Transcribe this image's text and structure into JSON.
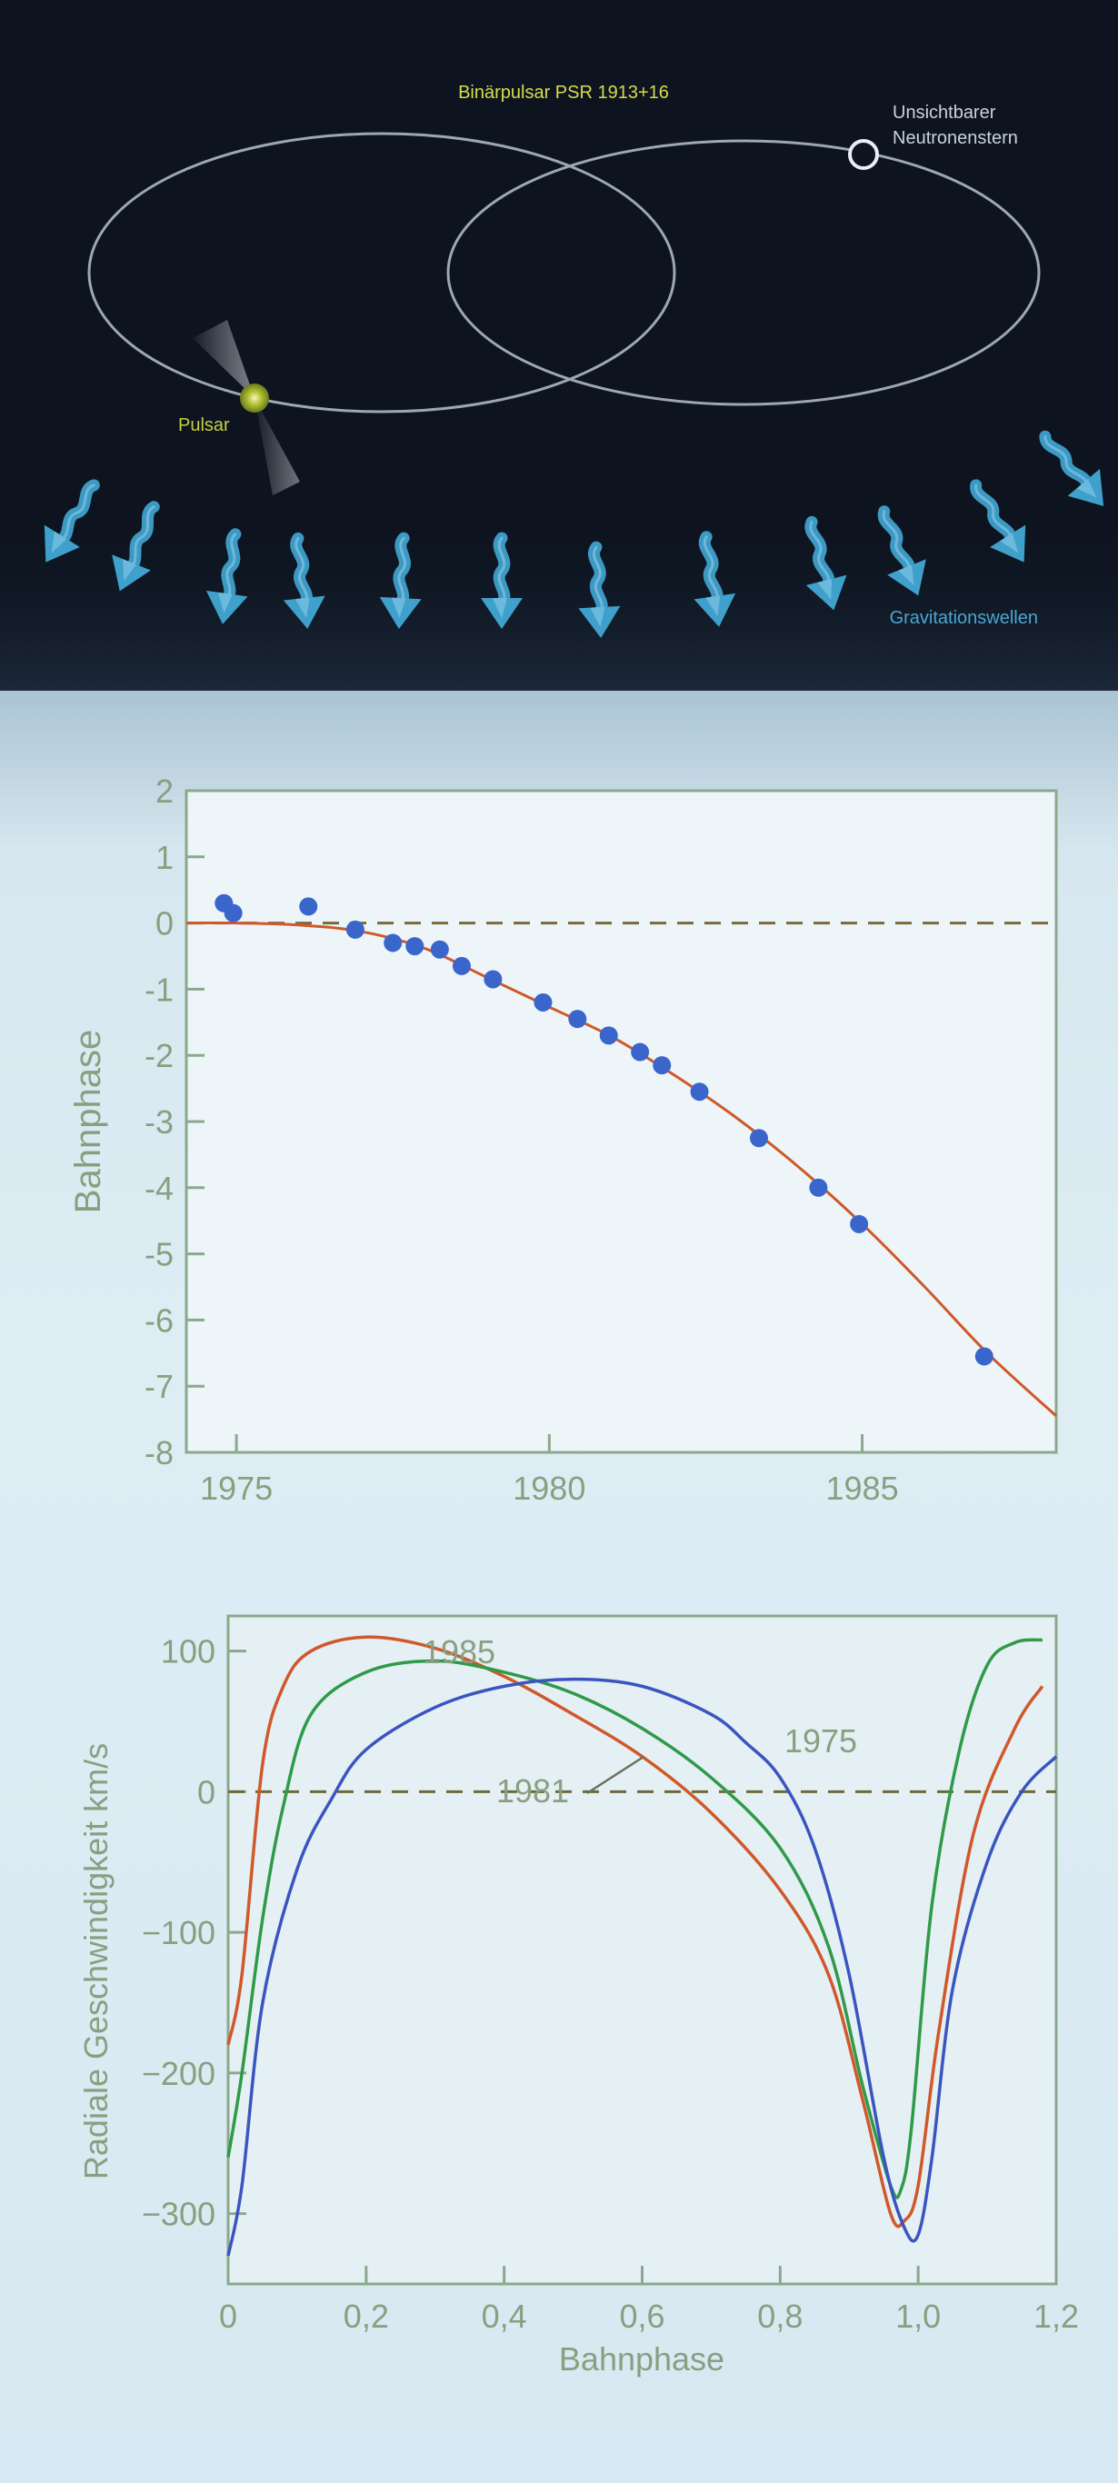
{
  "diagram": {
    "title": "Binärpulsar PSR 1913+16",
    "neutron_star_label_line1": "Unsichtbarer",
    "neutron_star_label_line2": "Neutronenstern",
    "pulsar_label": "Pulsar",
    "waves_label": "Gravitationswellen",
    "colors": {
      "background": "#0d1420",
      "title": "#d8dc4a",
      "pulsar": "#b6c435",
      "orbit": "#9ca8b6",
      "wave_arrow": "#3fa0cc",
      "label": "#c9d3dc"
    }
  },
  "chart_data": [
    {
      "type": "scatter",
      "title": "",
      "xlabel": "",
      "ylabel": "Bahnphase",
      "xlim": [
        1974.2,
        1988.1
      ],
      "ylim": [
        -8,
        2
      ],
      "x_ticks": [
        "1975",
        "1980",
        "1985"
      ],
      "y_ticks": [
        "2",
        "1",
        "0",
        "-1",
        "-2",
        "-3",
        "-4",
        "-5",
        "-6",
        "-7",
        "-8"
      ],
      "grid": false,
      "reference_line": {
        "y": 0,
        "style": "dashed",
        "color": "#7a6a3a"
      },
      "series": [
        {
          "kind": "points",
          "color": "#3a66cc",
          "points": [
            [
              1974.8,
              0.3
            ],
            [
              1974.95,
              0.15
            ],
            [
              1976.15,
              0.25
            ],
            [
              1976.9,
              -0.1
            ],
            [
              1977.5,
              -0.3
            ],
            [
              1977.85,
              -0.35
            ],
            [
              1978.25,
              -0.4
            ],
            [
              1978.6,
              -0.65
            ],
            [
              1979.1,
              -0.85
            ],
            [
              1979.9,
              -1.2
            ],
            [
              1980.45,
              -1.45
            ],
            [
              1980.95,
              -1.7
            ],
            [
              1981.45,
              -1.95
            ],
            [
              1981.8,
              -2.15
            ],
            [
              1982.4,
              -2.55
            ],
            [
              1983.35,
              -3.25
            ],
            [
              1984.3,
              -4.0
            ],
            [
              1984.95,
              -4.55
            ],
            [
              1986.95,
              -6.55
            ]
          ]
        },
        {
          "kind": "curve",
          "color": "#d0582a",
          "points": [
            [
              1974.2,
              0.0
            ],
            [
              1975.0,
              0.0
            ],
            [
              1976.0,
              -0.03
            ],
            [
              1977.0,
              -0.13
            ],
            [
              1978.0,
              -0.38
            ],
            [
              1979.0,
              -0.82
            ],
            [
              1980.0,
              -1.27
            ],
            [
              1981.0,
              -1.72
            ],
            [
              1982.0,
              -2.3
            ],
            [
              1983.0,
              -2.95
            ],
            [
              1984.0,
              -3.7
            ],
            [
              1985.0,
              -4.55
            ],
            [
              1986.0,
              -5.5
            ],
            [
              1987.0,
              -6.5
            ],
            [
              1988.1,
              -7.45
            ]
          ]
        }
      ]
    },
    {
      "type": "line",
      "title": "",
      "xlabel": "Bahnphase",
      "ylabel": "Radiale Geschwindigkeit km/s",
      "xlim": [
        0,
        1.2
      ],
      "ylim": [
        -350,
        125
      ],
      "x_ticks": [
        "0",
        "0,2",
        "0,4",
        "0,6",
        "0,8",
        "1,0",
        "1,2"
      ],
      "y_ticks": [
        "100",
        "0",
        "−100",
        "−200",
        "−300"
      ],
      "grid": false,
      "reference_line": {
        "y": 0,
        "style": "dashed",
        "color": "#6d6a3a"
      },
      "annotations": {
        "label_1985": "1985",
        "label_1981": "1981",
        "label_1975": "1975"
      },
      "series": [
        {
          "name": "1985",
          "color": "#d0582a",
          "points": [
            [
              0,
              -180
            ],
            [
              0.02,
              -130
            ],
            [
              0.05,
              20
            ],
            [
              0.08,
              75
            ],
            [
              0.12,
              100
            ],
            [
              0.2,
              110
            ],
            [
              0.3,
              102
            ],
            [
              0.4,
              82
            ],
            [
              0.5,
              55
            ],
            [
              0.6,
              25
            ],
            [
              0.7,
              -15
            ],
            [
              0.8,
              -70
            ],
            [
              0.87,
              -130
            ],
            [
              0.92,
              -220
            ],
            [
              0.96,
              -300
            ],
            [
              0.98,
              -305
            ],
            [
              1.0,
              -280
            ],
            [
              1.03,
              -170
            ],
            [
              1.08,
              -30
            ],
            [
              1.14,
              45
            ],
            [
              1.18,
              75
            ]
          ]
        },
        {
          "name": "1981",
          "color": "#2f9a48",
          "points": [
            [
              0,
              -260
            ],
            [
              0.02,
              -200
            ],
            [
              0.05,
              -90
            ],
            [
              0.08,
              -10
            ],
            [
              0.12,
              55
            ],
            [
              0.2,
              85
            ],
            [
              0.3,
              93
            ],
            [
              0.4,
              85
            ],
            [
              0.5,
              70
            ],
            [
              0.6,
              45
            ],
            [
              0.7,
              10
            ],
            [
              0.8,
              -40
            ],
            [
              0.87,
              -110
            ],
            [
              0.92,
              -210
            ],
            [
              0.96,
              -280
            ],
            [
              0.975,
              -283
            ],
            [
              0.99,
              -240
            ],
            [
              1.02,
              -80
            ],
            [
              1.06,
              30
            ],
            [
              1.1,
              90
            ],
            [
              1.14,
              106
            ],
            [
              1.18,
              108
            ]
          ]
        },
        {
          "name": "1975",
          "color": "#3a55c0",
          "points": [
            [
              0,
              -330
            ],
            [
              0.02,
              -280
            ],
            [
              0.05,
              -150
            ],
            [
              0.1,
              -55
            ],
            [
              0.15,
              -5
            ],
            [
              0.2,
              30
            ],
            [
              0.3,
              60
            ],
            [
              0.4,
              75
            ],
            [
              0.5,
              80
            ],
            [
              0.6,
              75
            ],
            [
              0.7,
              55
            ],
            [
              0.75,
              35
            ],
            [
              0.8,
              10
            ],
            [
              0.85,
              -40
            ],
            [
              0.9,
              -130
            ],
            [
              0.95,
              -260
            ],
            [
              0.98,
              -310
            ],
            [
              1.0,
              -315
            ],
            [
              1.02,
              -260
            ],
            [
              1.05,
              -140
            ],
            [
              1.1,
              -50
            ],
            [
              1.15,
              0
            ],
            [
              1.2,
              25
            ]
          ]
        }
      ]
    }
  ]
}
